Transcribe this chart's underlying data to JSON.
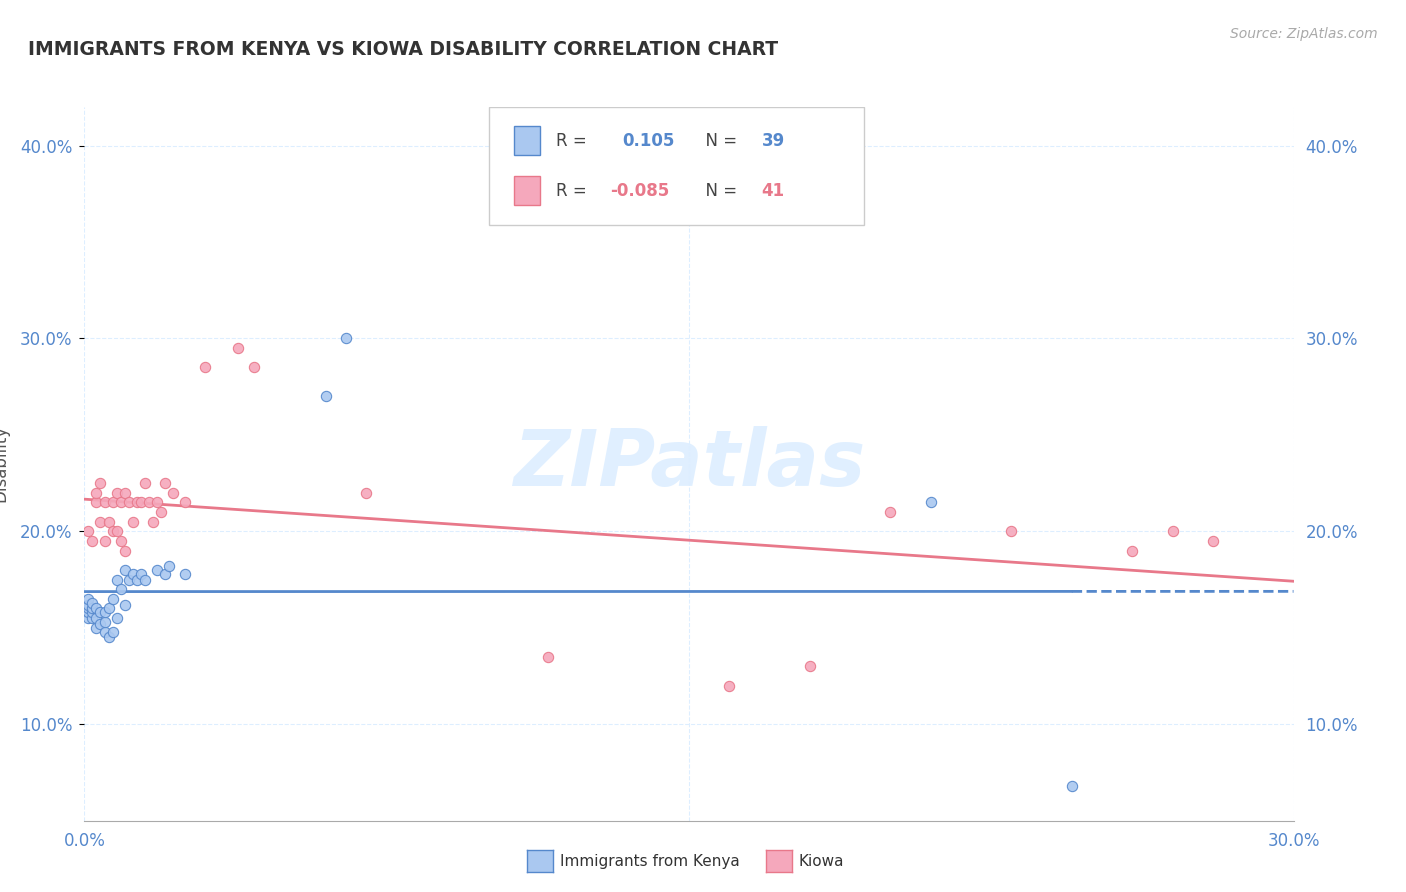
{
  "title": "IMMIGRANTS FROM KENYA VS KIOWA DISABILITY CORRELATION CHART",
  "source_text": "Source: ZipAtlas.com",
  "ylabel": "Disability",
  "xlim": [
    0.0,
    0.3
  ],
  "ylim": [
    0.05,
    0.42
  ],
  "ytick_vals": [
    0.1,
    0.2,
    0.3,
    0.4
  ],
  "xtick_vals": [
    0.0,
    0.15,
    0.3
  ],
  "color_kenya": "#aac8f0",
  "color_kiowa": "#f5a8bc",
  "line_color_kenya": "#5588cc",
  "line_color_kiowa": "#e8788a",
  "background_color": "#ffffff",
  "grid_color": "#ddeeff",
  "watermark": "ZIPatlas",
  "kenya_x": [
    0.001,
    0.001,
    0.001,
    0.001,
    0.001,
    0.002,
    0.002,
    0.002,
    0.002,
    0.003,
    0.003,
    0.003,
    0.004,
    0.004,
    0.005,
    0.005,
    0.005,
    0.006,
    0.006,
    0.007,
    0.007,
    0.008,
    0.008,
    0.009,
    0.01,
    0.01,
    0.011,
    0.012,
    0.013,
    0.014,
    0.015,
    0.018,
    0.02,
    0.021,
    0.025,
    0.06,
    0.065,
    0.21,
    0.245
  ],
  "kenya_y": [
    0.155,
    0.158,
    0.16,
    0.162,
    0.165,
    0.155,
    0.158,
    0.16,
    0.163,
    0.15,
    0.155,
    0.16,
    0.152,
    0.158,
    0.148,
    0.153,
    0.158,
    0.145,
    0.16,
    0.148,
    0.165,
    0.155,
    0.175,
    0.17,
    0.162,
    0.18,
    0.175,
    0.178,
    0.175,
    0.178,
    0.175,
    0.18,
    0.178,
    0.182,
    0.178,
    0.27,
    0.3,
    0.215,
    0.068
  ],
  "kiowa_x": [
    0.001,
    0.002,
    0.003,
    0.003,
    0.004,
    0.004,
    0.005,
    0.005,
    0.006,
    0.007,
    0.007,
    0.008,
    0.008,
    0.009,
    0.009,
    0.01,
    0.01,
    0.011,
    0.012,
    0.013,
    0.014,
    0.015,
    0.016,
    0.017,
    0.018,
    0.019,
    0.02,
    0.022,
    0.025,
    0.03,
    0.038,
    0.042,
    0.07,
    0.115,
    0.16,
    0.18,
    0.2,
    0.23,
    0.26,
    0.27,
    0.28
  ],
  "kiowa_y": [
    0.2,
    0.195,
    0.215,
    0.22,
    0.205,
    0.225,
    0.195,
    0.215,
    0.205,
    0.2,
    0.215,
    0.2,
    0.22,
    0.195,
    0.215,
    0.19,
    0.22,
    0.215,
    0.205,
    0.215,
    0.215,
    0.225,
    0.215,
    0.205,
    0.215,
    0.21,
    0.225,
    0.22,
    0.215,
    0.285,
    0.295,
    0.285,
    0.22,
    0.135,
    0.12,
    0.13,
    0.21,
    0.2,
    0.19,
    0.2,
    0.195
  ]
}
